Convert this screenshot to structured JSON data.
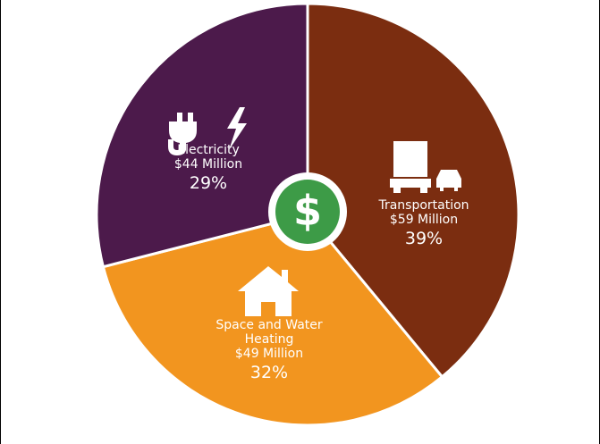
{
  "chart_data": {
    "type": "pie",
    "categories": [
      "Transportation",
      "Space and Water Heating",
      "Electricity"
    ],
    "values": [
      39,
      32,
      29
    ],
    "value_labels": [
      "39%",
      "32%",
      "29%"
    ],
    "amount_labels": [
      "$59 Million",
      "$49 Million",
      "$44 Million"
    ],
    "colors": [
      "#7b2d10",
      "#f2951f",
      "#4c1a4b"
    ],
    "center_label": "$",
    "center_color": "#3d9b47"
  }
}
